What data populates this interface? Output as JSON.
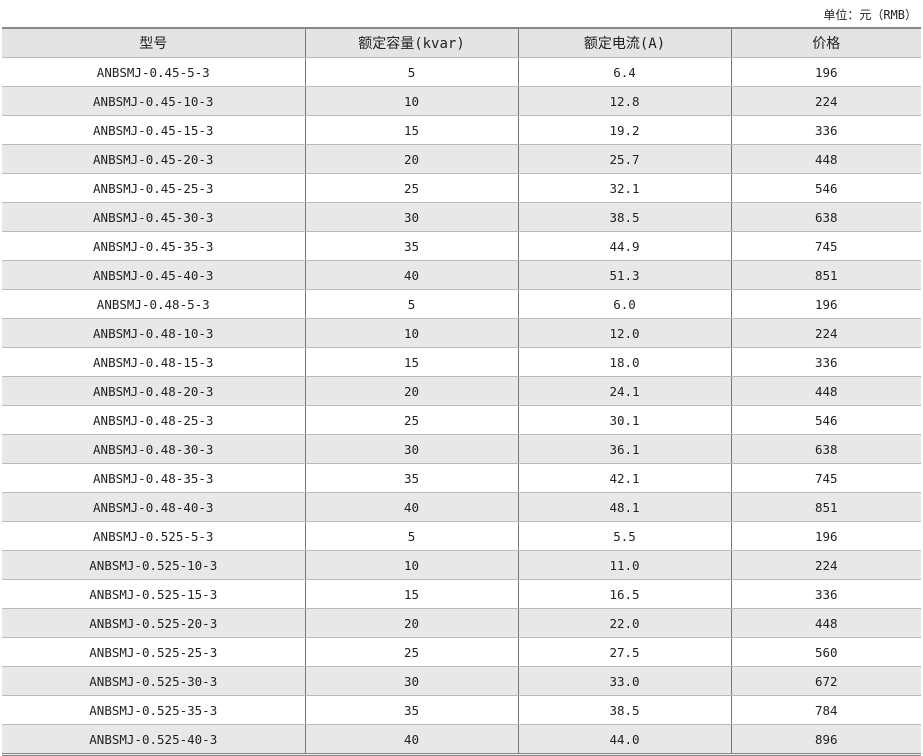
{
  "unit_label": "单位：元（RMB）",
  "headers": [
    "型号",
    "额定容量(kvar)",
    "额定电流(A)",
    "价格"
  ],
  "rows": [
    [
      "ANBSMJ-0.45-5-3",
      "5",
      "6.4",
      "196"
    ],
    [
      "ANBSMJ-0.45-10-3",
      "10",
      "12.8",
      "224"
    ],
    [
      "ANBSMJ-0.45-15-3",
      "15",
      "19.2",
      "336"
    ],
    [
      "ANBSMJ-0.45-20-3",
      "20",
      "25.7",
      "448"
    ],
    [
      "ANBSMJ-0.45-25-3",
      "25",
      "32.1",
      "546"
    ],
    [
      "ANBSMJ-0.45-30-3",
      "30",
      "38.5",
      "638"
    ],
    [
      "ANBSMJ-0.45-35-3",
      "35",
      "44.9",
      "745"
    ],
    [
      "ANBSMJ-0.45-40-3",
      "40",
      "51.3",
      "851"
    ],
    [
      "ANBSMJ-0.48-5-3",
      "5",
      "6.0",
      "196"
    ],
    [
      "ANBSMJ-0.48-10-3",
      "10",
      "12.0",
      "224"
    ],
    [
      "ANBSMJ-0.48-15-3",
      "15",
      "18.0",
      "336"
    ],
    [
      "ANBSMJ-0.48-20-3",
      "20",
      "24.1",
      "448"
    ],
    [
      "ANBSMJ-0.48-25-3",
      "25",
      "30.1",
      "546"
    ],
    [
      "ANBSMJ-0.48-30-3",
      "30",
      "36.1",
      "638"
    ],
    [
      "ANBSMJ-0.48-35-3",
      "35",
      "42.1",
      "745"
    ],
    [
      "ANBSMJ-0.48-40-3",
      "40",
      "48.1",
      "851"
    ],
    [
      "ANBSMJ-0.525-5-3",
      "5",
      "5.5",
      "196"
    ],
    [
      "ANBSMJ-0.525-10-3",
      "10",
      "11.0",
      "224"
    ],
    [
      "ANBSMJ-0.525-15-3",
      "15",
      "16.5",
      "336"
    ],
    [
      "ANBSMJ-0.525-20-3",
      "20",
      "22.0",
      "448"
    ],
    [
      "ANBSMJ-0.525-25-3",
      "25",
      "27.5",
      "560"
    ],
    [
      "ANBSMJ-0.525-30-3",
      "30",
      "33.0",
      "672"
    ],
    [
      "ANBSMJ-0.525-35-3",
      "35",
      "38.5",
      "784"
    ],
    [
      "ANBSMJ-0.525-40-3",
      "40",
      "44.0",
      "896"
    ]
  ]
}
